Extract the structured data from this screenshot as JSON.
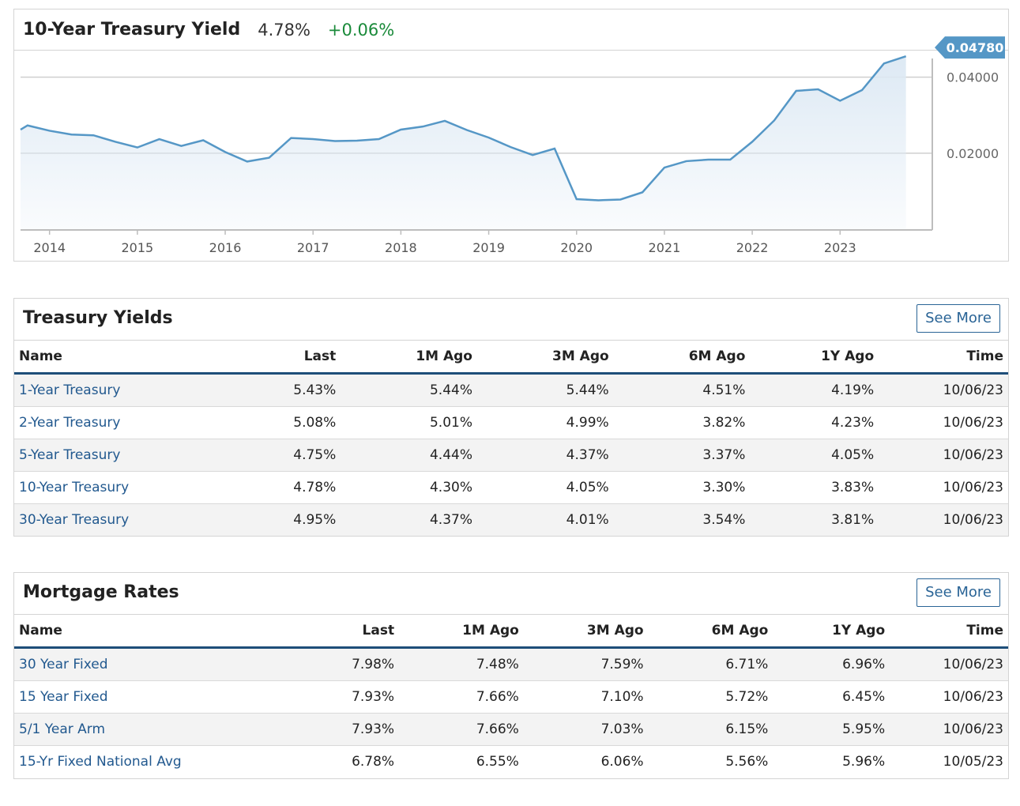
{
  "chart": {
    "title": "10-Year Treasury Yield",
    "last": "4.78%",
    "change": "+0.06%",
    "colors": {
      "line": "#5597c6",
      "fill": "#dde9f4",
      "change": "#1a8a3a",
      "badge": "#5597c6"
    }
  },
  "chart_data": {
    "type": "area",
    "title": "10-Year Treasury Yield",
    "x_tick_labels": [
      "2014",
      "2015",
      "2016",
      "2017",
      "2018",
      "2019",
      "2020",
      "2021",
      "2022",
      "2023"
    ],
    "y_tick_labels": [
      "0.04000",
      "0.02000"
    ],
    "y_ticks": [
      0.04,
      0.02
    ],
    "ylim": [
      0.0,
      0.047
    ],
    "xlim": [
      2013.67,
      2024.05
    ],
    "grid": "horizontal",
    "current_value_label": "0.04780",
    "current_value": 0.0478,
    "series": [
      {
        "x": [
          2013.67,
          2013.75,
          2014.0,
          2014.25,
          2014.5,
          2014.75,
          2015.0,
          2015.25,
          2015.5,
          2015.75,
          2016.0,
          2016.25,
          2016.5,
          2016.75,
          2017.0,
          2017.25,
          2017.5,
          2017.75,
          2018.0,
          2018.25,
          2018.5,
          2018.75,
          2019.0,
          2019.25,
          2019.5,
          2019.75,
          2020.0,
          2020.25,
          2020.5,
          2020.75,
          2021.0,
          2021.25,
          2021.5,
          2021.75,
          2022.0,
          2022.25,
          2022.5,
          2022.75,
          2023.0,
          2023.25,
          2023.5,
          2023.75
        ],
        "values": [
          0.0262,
          0.0273,
          0.0259,
          0.0249,
          0.0247,
          0.023,
          0.0215,
          0.0237,
          0.0219,
          0.0234,
          0.0203,
          0.0178,
          0.0188,
          0.024,
          0.0237,
          0.0232,
          0.0233,
          0.0237,
          0.0262,
          0.027,
          0.0285,
          0.0261,
          0.0241,
          0.0216,
          0.0195,
          0.0212,
          0.0079,
          0.0076,
          0.0078,
          0.0097,
          0.0162,
          0.0179,
          0.0183,
          0.0183,
          0.023,
          0.0286,
          0.0364,
          0.0368,
          0.0338,
          0.0366,
          0.0436,
          0.0455
        ]
      }
    ]
  },
  "treasury": {
    "title": "Treasury Yields",
    "see_more": "See More",
    "headers": [
      "Name",
      "Last",
      "1M Ago",
      "3M Ago",
      "6M Ago",
      "1Y Ago",
      "Time"
    ],
    "rows": [
      [
        "1-Year Treasury",
        "5.43%",
        "5.44%",
        "5.44%",
        "4.51%",
        "4.19%",
        "10/06/23"
      ],
      [
        "2-Year Treasury",
        "5.08%",
        "5.01%",
        "4.99%",
        "3.82%",
        "4.23%",
        "10/06/23"
      ],
      [
        "5-Year Treasury",
        "4.75%",
        "4.44%",
        "4.37%",
        "3.37%",
        "4.05%",
        "10/06/23"
      ],
      [
        "10-Year Treasury",
        "4.78%",
        "4.30%",
        "4.05%",
        "3.30%",
        "3.83%",
        "10/06/23"
      ],
      [
        "30-Year Treasury",
        "4.95%",
        "4.37%",
        "4.01%",
        "3.54%",
        "3.81%",
        "10/06/23"
      ]
    ]
  },
  "mortgage": {
    "title": "Mortgage Rates",
    "see_more": "See More",
    "headers": [
      "Name",
      "Last",
      "1M Ago",
      "3M Ago",
      "6M Ago",
      "1Y Ago",
      "Time"
    ],
    "rows": [
      [
        "30 Year Fixed",
        "7.98%",
        "7.48%",
        "7.59%",
        "6.71%",
        "6.96%",
        "10/06/23"
      ],
      [
        "15 Year Fixed",
        "7.93%",
        "7.66%",
        "7.10%",
        "5.72%",
        "6.45%",
        "10/06/23"
      ],
      [
        "5/1 Year Arm",
        "7.93%",
        "7.66%",
        "7.03%",
        "6.15%",
        "5.95%",
        "10/06/23"
      ],
      [
        "15-Yr Fixed National Avg",
        "6.78%",
        "6.55%",
        "6.06%",
        "5.56%",
        "5.96%",
        "10/05/23"
      ]
    ]
  }
}
